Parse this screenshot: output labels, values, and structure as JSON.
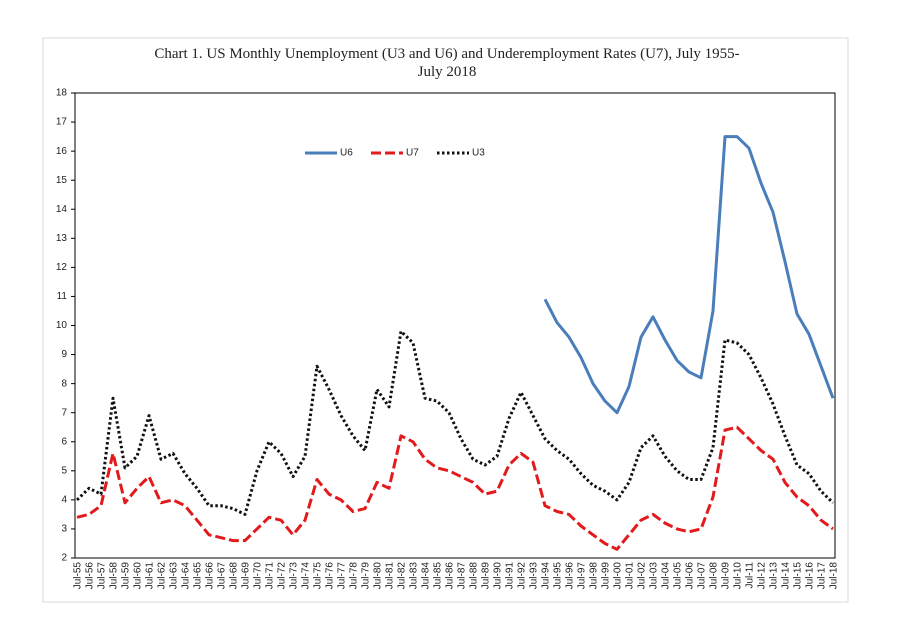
{
  "chart_data": {
    "type": "line",
    "title": [
      "Chart 1.  US Monthly Unemployment  (U3 and U6) and Underemployment Rates (U7), July 1955-",
      "July 2018"
    ],
    "categories": [
      "Jul-55",
      "Jul-56",
      "Jul-57",
      "Jul-58",
      "Jul-59",
      "Jul-60",
      "Jul-61",
      "Jul-62",
      "Jul-63",
      "Jul-64",
      "Jul-65",
      "Jul-66",
      "Jul-67",
      "Jul-68",
      "Jul-69",
      "Jul-70",
      "Jul-71",
      "Jul-72",
      "Jul-73",
      "Jul-74",
      "Jul-75",
      "Jul-76",
      "Jul-77",
      "Jul-78",
      "Jul-79",
      "Jul-80",
      "Jul-81",
      "Jul-82",
      "Jul-83",
      "Jul-84",
      "Jul-85",
      "Jul-86",
      "Jul-87",
      "Jul-88",
      "Jul-89",
      "Jul-90",
      "Jul-91",
      "Jul-92",
      "Jul-93",
      "Jul-94",
      "Jul-95",
      "Jul-96",
      "Jul-97",
      "Jul-98",
      "Jul-99",
      "Jul-00",
      "Jul-01",
      "Jul-02",
      "Jul-03",
      "Jul-04",
      "Jul-05",
      "Jul-06",
      "Jul-07",
      "Jul-08",
      "Jul-09",
      "Jul-10",
      "Jul-11",
      "Jul-12",
      "Jul-13",
      "Jul-14",
      "Jul-15",
      "Jul-16",
      "Jul-17",
      "Jul-18"
    ],
    "series": [
      {
        "name": "U6",
        "color": "#4a7ebb",
        "line_style": "solid",
        "values": [
          null,
          null,
          null,
          null,
          null,
          null,
          null,
          null,
          null,
          null,
          null,
          null,
          null,
          null,
          null,
          null,
          null,
          null,
          null,
          null,
          null,
          null,
          null,
          null,
          null,
          null,
          null,
          null,
          null,
          null,
          null,
          null,
          null,
          null,
          null,
          null,
          null,
          null,
          null,
          10.9,
          10.1,
          9.6,
          8.9,
          8.0,
          7.4,
          7.0,
          7.9,
          9.6,
          10.3,
          9.5,
          8.8,
          8.4,
          8.2,
          10.5,
          16.5,
          16.5,
          16.1,
          14.9,
          13.9,
          12.2,
          10.4,
          9.7,
          8.6,
          7.5
        ]
      },
      {
        "name": "U7",
        "color": "#e31a1c",
        "line_style": "dashed",
        "values": [
          3.4,
          3.5,
          3.8,
          5.6,
          3.9,
          4.4,
          4.8,
          3.9,
          4.0,
          3.8,
          3.3,
          2.8,
          2.7,
          2.6,
          2.6,
          3.0,
          3.4,
          3.3,
          2.8,
          3.3,
          4.7,
          4.2,
          4.0,
          3.6,
          3.7,
          4.6,
          4.4,
          6.2,
          6.0,
          5.4,
          5.1,
          5.0,
          4.8,
          4.6,
          4.2,
          4.3,
          5.2,
          5.6,
          5.3,
          3.8,
          3.6,
          3.5,
          3.1,
          2.8,
          2.5,
          2.3,
          2.8,
          3.3,
          3.5,
          3.2,
          3.0,
          2.9,
          3.0,
          4.1,
          6.4,
          6.5,
          6.1,
          5.7,
          5.4,
          4.6,
          4.1,
          3.8,
          3.3,
          3.0
        ]
      },
      {
        "name": "U3",
        "color": "#111111",
        "line_style": "dotted",
        "values": [
          4.0,
          4.4,
          4.2,
          7.5,
          5.1,
          5.5,
          6.9,
          5.4,
          5.6,
          4.9,
          4.4,
          3.8,
          3.8,
          3.7,
          3.5,
          5.0,
          6.0,
          5.6,
          4.8,
          5.5,
          8.6,
          7.8,
          6.9,
          6.2,
          5.7,
          7.8,
          7.2,
          9.8,
          9.4,
          7.5,
          7.4,
          7.0,
          6.1,
          5.4,
          5.2,
          5.5,
          6.8,
          7.7,
          6.9,
          6.1,
          5.7,
          5.4,
          4.9,
          4.5,
          4.3,
          4.0,
          4.6,
          5.8,
          6.2,
          5.5,
          5.0,
          4.7,
          4.7,
          5.8,
          9.5,
          9.4,
          9.0,
          8.2,
          7.3,
          6.2,
          5.2,
          4.9,
          4.3,
          3.9
        ]
      }
    ],
    "ylim": [
      2,
      18
    ],
    "yticks": [
      2,
      3,
      4,
      5,
      6,
      7,
      8,
      9,
      10,
      11,
      12,
      13,
      14,
      15,
      16,
      17,
      18
    ],
    "grid": false,
    "legend": "top"
  }
}
